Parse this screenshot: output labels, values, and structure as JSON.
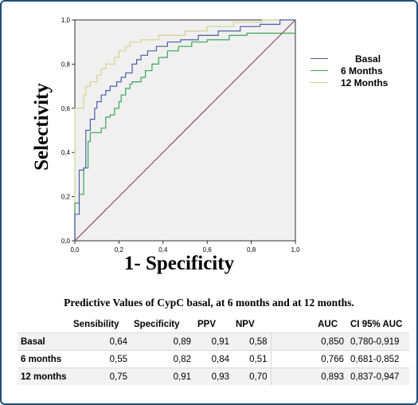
{
  "chart_data": {
    "type": "line",
    "xlabel": "1- Specificity",
    "ylabel": "Selectivity",
    "xlim": [
      0,
      1
    ],
    "ylim": [
      0,
      1
    ],
    "x_ticks": [
      "0,0",
      "0,2",
      "0,4",
      "0,6",
      "0,8",
      "1,0"
    ],
    "y_ticks": [
      "0,0",
      "0,2",
      "0,4",
      "0,6",
      "0,8",
      "1,0"
    ],
    "grid": false,
    "legend_position": "right",
    "series": [
      {
        "name": "Basal",
        "color": "#4a5fa8",
        "points": [
          [
            0,
            0
          ],
          [
            0,
            0.12
          ],
          [
            0.02,
            0.12
          ],
          [
            0.02,
            0.32
          ],
          [
            0.04,
            0.32
          ],
          [
            0.04,
            0.33
          ],
          [
            0.05,
            0.33
          ],
          [
            0.05,
            0.5
          ],
          [
            0.07,
            0.5
          ],
          [
            0.07,
            0.55
          ],
          [
            0.09,
            0.55
          ],
          [
            0.09,
            0.6
          ],
          [
            0.1,
            0.6
          ],
          [
            0.1,
            0.63
          ],
          [
            0.12,
            0.63
          ],
          [
            0.12,
            0.66
          ],
          [
            0.14,
            0.66
          ],
          [
            0.14,
            0.68
          ],
          [
            0.16,
            0.68
          ],
          [
            0.16,
            0.7
          ],
          [
            0.19,
            0.7
          ],
          [
            0.19,
            0.72
          ],
          [
            0.21,
            0.72
          ],
          [
            0.21,
            0.74
          ],
          [
            0.23,
            0.74
          ],
          [
            0.23,
            0.76
          ],
          [
            0.26,
            0.76
          ],
          [
            0.26,
            0.8
          ],
          [
            0.28,
            0.8
          ],
          [
            0.28,
            0.82
          ],
          [
            0.3,
            0.82
          ],
          [
            0.3,
            0.84
          ],
          [
            0.33,
            0.84
          ],
          [
            0.33,
            0.86
          ],
          [
            0.37,
            0.86
          ],
          [
            0.37,
            0.88
          ],
          [
            0.42,
            0.88
          ],
          [
            0.42,
            0.9
          ],
          [
            0.48,
            0.9
          ],
          [
            0.48,
            0.91
          ],
          [
            0.56,
            0.91
          ],
          [
            0.56,
            0.93
          ],
          [
            0.65,
            0.93
          ],
          [
            0.65,
            0.95
          ],
          [
            0.75,
            0.95
          ],
          [
            0.75,
            0.97
          ],
          [
            0.84,
            0.97
          ],
          [
            0.84,
            0.98
          ],
          [
            0.93,
            0.98
          ],
          [
            0.93,
            1.0
          ],
          [
            1.0,
            1.0
          ]
        ]
      },
      {
        "name": "6 Months",
        "color": "#3aa655",
        "points": [
          [
            0,
            0
          ],
          [
            0,
            0.17
          ],
          [
            0.02,
            0.17
          ],
          [
            0.02,
            0.21
          ],
          [
            0.04,
            0.21
          ],
          [
            0.04,
            0.33
          ],
          [
            0.06,
            0.33
          ],
          [
            0.06,
            0.45
          ],
          [
            0.07,
            0.45
          ],
          [
            0.07,
            0.49
          ],
          [
            0.12,
            0.49
          ],
          [
            0.12,
            0.51
          ],
          [
            0.14,
            0.51
          ],
          [
            0.14,
            0.56
          ],
          [
            0.16,
            0.56
          ],
          [
            0.16,
            0.57
          ],
          [
            0.18,
            0.57
          ],
          [
            0.18,
            0.6
          ],
          [
            0.2,
            0.6
          ],
          [
            0.2,
            0.63
          ],
          [
            0.21,
            0.63
          ],
          [
            0.21,
            0.66
          ],
          [
            0.23,
            0.66
          ],
          [
            0.23,
            0.69
          ],
          [
            0.25,
            0.69
          ],
          [
            0.25,
            0.71
          ],
          [
            0.26,
            0.71
          ],
          [
            0.26,
            0.72
          ],
          [
            0.3,
            0.72
          ],
          [
            0.3,
            0.74
          ],
          [
            0.32,
            0.74
          ],
          [
            0.32,
            0.77
          ],
          [
            0.35,
            0.77
          ],
          [
            0.35,
            0.8
          ],
          [
            0.38,
            0.8
          ],
          [
            0.38,
            0.83
          ],
          [
            0.42,
            0.83
          ],
          [
            0.42,
            0.86
          ],
          [
            0.47,
            0.86
          ],
          [
            0.47,
            0.88
          ],
          [
            0.53,
            0.88
          ],
          [
            0.53,
            0.9
          ],
          [
            0.6,
            0.9
          ],
          [
            0.6,
            0.91
          ],
          [
            0.7,
            0.91
          ],
          [
            0.7,
            0.93
          ],
          [
            0.78,
            0.93
          ],
          [
            0.78,
            0.94
          ],
          [
            0.95,
            0.94
          ],
          [
            1.0,
            0.94
          ]
        ]
      },
      {
        "name": "12 Months",
        "color": "#cfd48e",
        "points": [
          [
            0,
            0
          ],
          [
            0,
            0.6
          ],
          [
            0.04,
            0.6
          ],
          [
            0.04,
            0.66
          ],
          [
            0.05,
            0.66
          ],
          [
            0.05,
            0.7
          ],
          [
            0.07,
            0.7
          ],
          [
            0.07,
            0.72
          ],
          [
            0.1,
            0.72
          ],
          [
            0.1,
            0.75
          ],
          [
            0.12,
            0.75
          ],
          [
            0.12,
            0.78
          ],
          [
            0.14,
            0.78
          ],
          [
            0.14,
            0.8
          ],
          [
            0.18,
            0.8
          ],
          [
            0.18,
            0.83
          ],
          [
            0.2,
            0.83
          ],
          [
            0.2,
            0.86
          ],
          [
            0.23,
            0.86
          ],
          [
            0.23,
            0.88
          ],
          [
            0.25,
            0.88
          ],
          [
            0.25,
            0.9
          ],
          [
            0.3,
            0.9
          ],
          [
            0.3,
            0.91
          ],
          [
            0.38,
            0.91
          ],
          [
            0.38,
            0.93
          ],
          [
            0.5,
            0.93
          ],
          [
            0.5,
            0.95
          ],
          [
            0.6,
            0.95
          ],
          [
            0.6,
            0.97
          ],
          [
            0.72,
            0.97
          ],
          [
            0.72,
            0.99
          ],
          [
            0.85,
            0.99
          ],
          [
            0.85,
            1.0
          ],
          [
            1.0,
            1.0
          ]
        ]
      }
    ],
    "reference_line": {
      "color": "#8b2c6a",
      "points": [
        [
          0,
          0
        ],
        [
          1,
          1
        ]
      ]
    }
  },
  "table": {
    "caption": "Predictive Values of CypC basal, at 6 months and at 12 months.",
    "headers": [
      "",
      "Sensibility",
      "Specificity",
      "PPV",
      "NPV",
      "AUC",
      "CI 95% AUC"
    ],
    "rows": [
      {
        "label": "Basal",
        "sensibility": "0,64",
        "specificity": "0,89",
        "ppv": "0,91",
        "npv": "0,58",
        "auc": "0,850",
        "ci": "0,780-0,919"
      },
      {
        "label": "6 months",
        "sensibility": "0,55",
        "specificity": "0,82",
        "ppv": "0,84",
        "npv": "0,51",
        "auc": "0,766",
        "ci": "0,681-0,852"
      },
      {
        "label": "12 months",
        "sensibility": "0,75",
        "specificity": "0,91",
        "ppv": "0,93",
        "npv": "0,70",
        "auc": "0,893",
        "ci": "0,837-0,947"
      }
    ]
  }
}
